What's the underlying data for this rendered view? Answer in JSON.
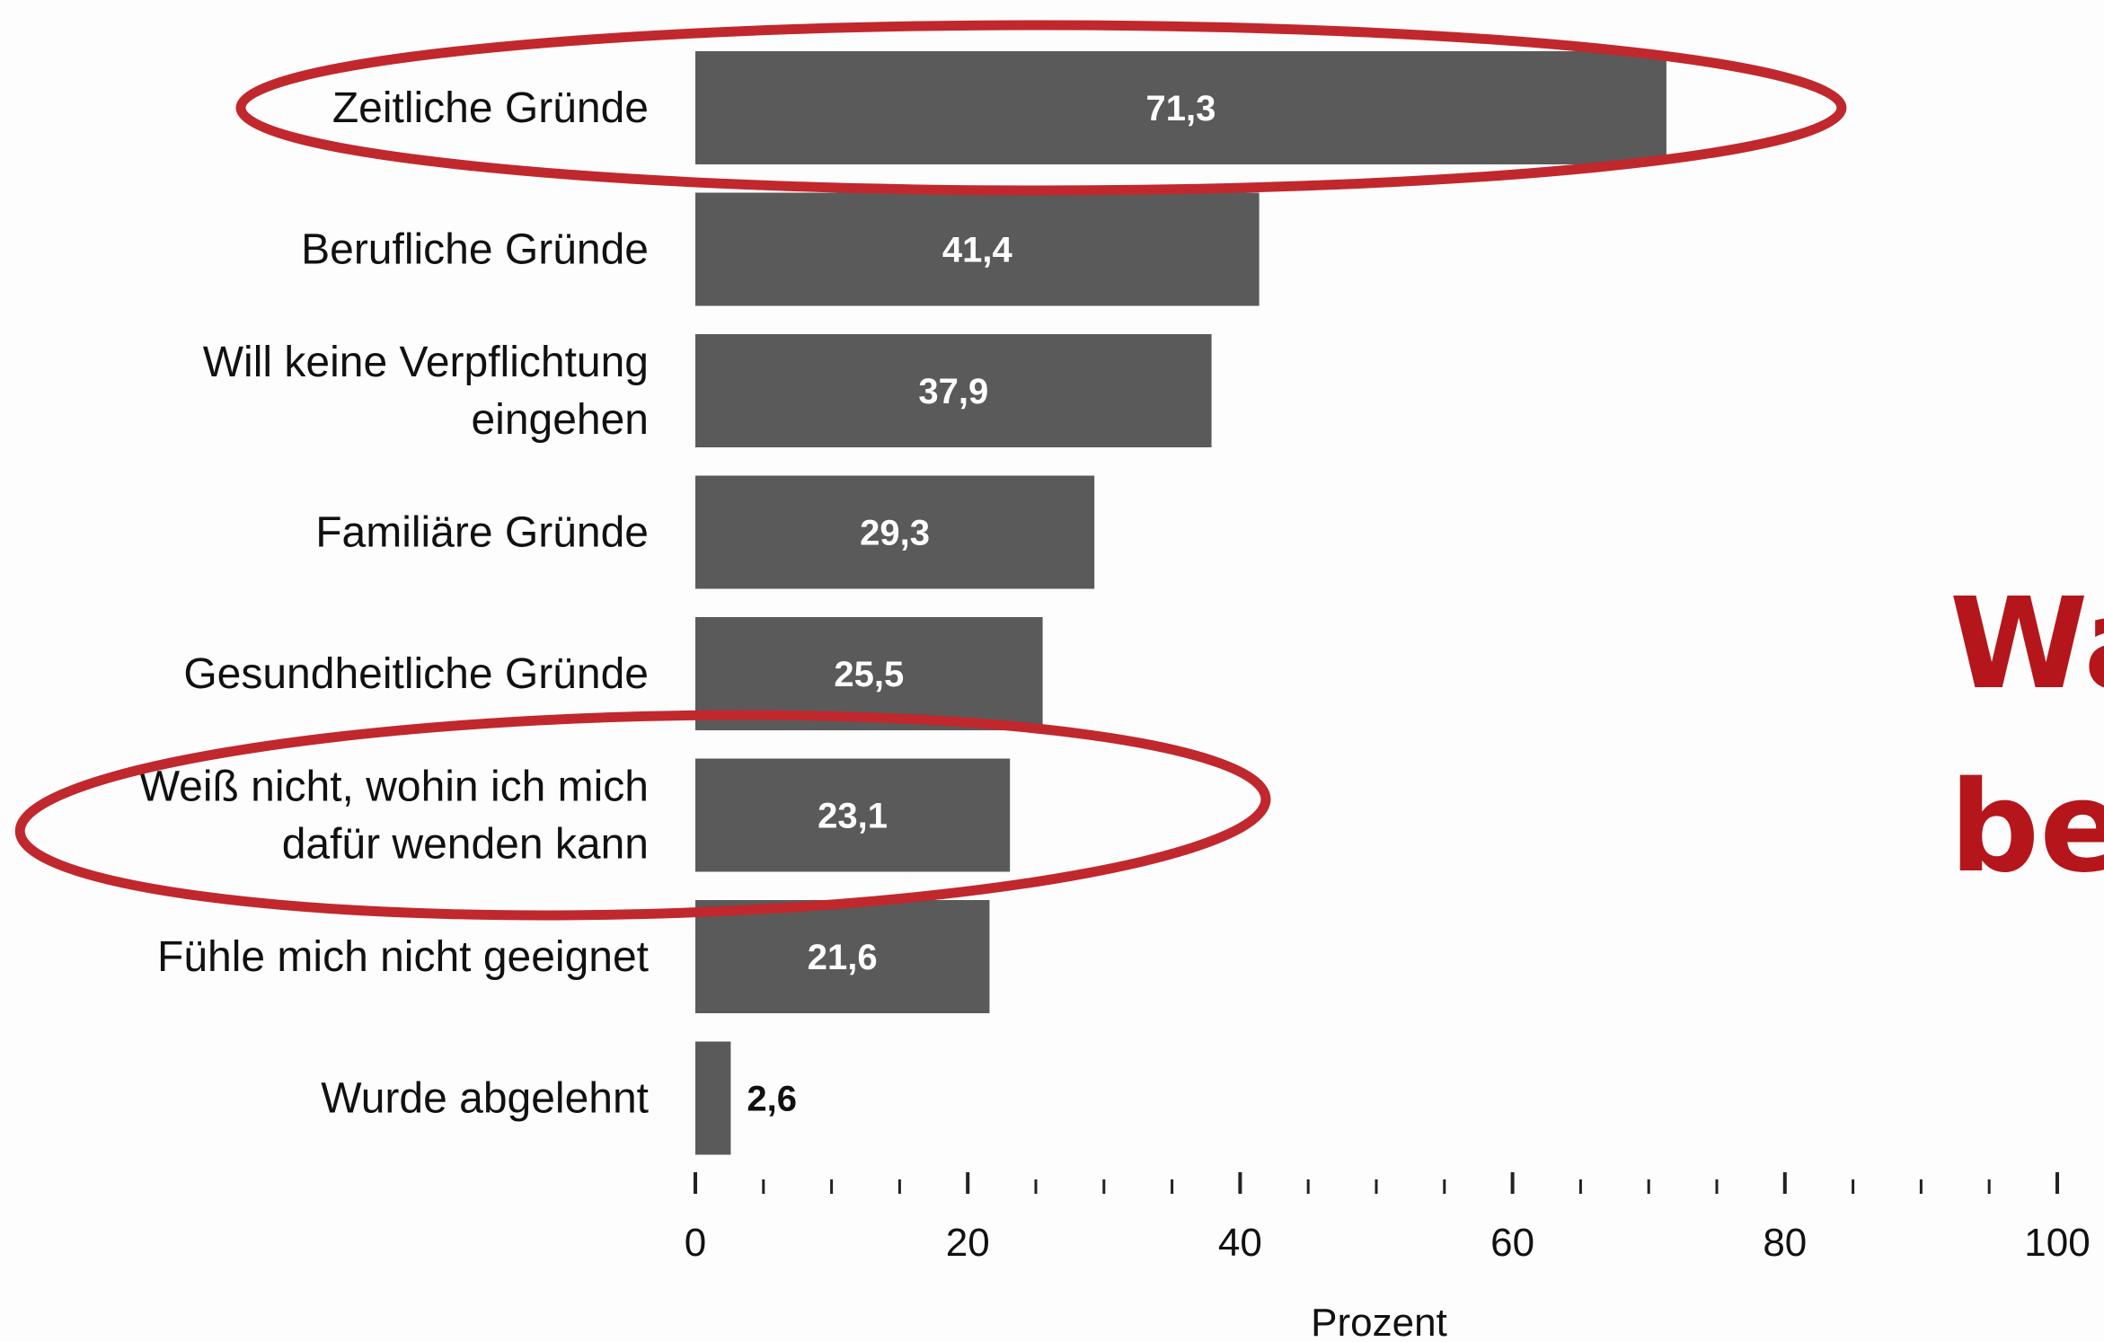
{
  "chart_data": {
    "type": "bar",
    "orientation": "horizontal",
    "categories": [
      [
        "Zeitliche Gründe"
      ],
      [
        "Berufliche Gründe"
      ],
      [
        "Will keine Verpflichtung",
        "eingehen"
      ],
      [
        "Familiäre Gründe"
      ],
      [
        "Gesundheitliche Gründe"
      ],
      [
        "Weiß nicht, wohin ich mich",
        "dafür wenden kann"
      ],
      [
        "Fühle mich nicht geeignet"
      ],
      [
        "Wurde abgelehnt"
      ]
    ],
    "values": [
      71.3,
      41.4,
      37.9,
      29.3,
      25.5,
      23.1,
      21.6,
      2.6
    ],
    "value_labels": [
      "71,3",
      "41,4",
      "37,9",
      "29,3",
      "25,5",
      "23,1",
      "21,6",
      "2,6"
    ],
    "xlabel": "Prozent",
    "xlim": [
      0,
      100
    ],
    "major_ticks": [
      0,
      20,
      40,
      60,
      80,
      100
    ],
    "minor_tick_step": 5,
    "grid": false,
    "bar_color": "#5a5a5a",
    "highlighted_categories": [
      0,
      5
    ],
    "highlight_color": "#c0282d"
  },
  "annotation": {
    "line1": "Wa",
    "line2": "be",
    "color": "#b5161b"
  }
}
